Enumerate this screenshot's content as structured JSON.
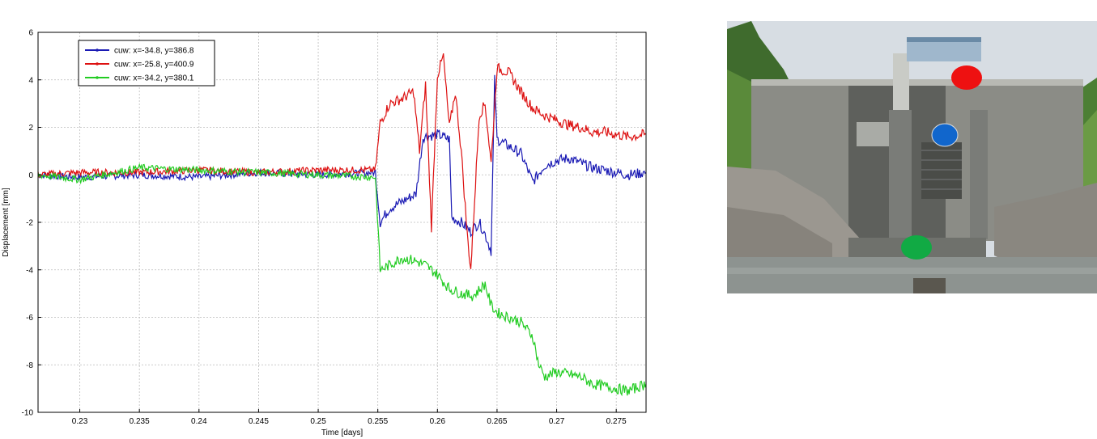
{
  "chart_data": {
    "type": "line",
    "title": "",
    "xlabel": "Time [days]",
    "ylabel": "Displacement [mm]",
    "xlim": [
      0.2265,
      0.2775
    ],
    "ylim": [
      -10,
      6
    ],
    "xticks": [
      0.23,
      0.235,
      0.24,
      0.245,
      0.25,
      0.255,
      0.26,
      0.265,
      0.27,
      0.275
    ],
    "xtick_labels": [
      "0.23",
      "0.235",
      "0.24",
      "0.245",
      "0.25",
      "0.255",
      "0.26",
      "0.265",
      "0.27",
      "0.275"
    ],
    "yticks": [
      -10,
      -8,
      -6,
      -4,
      -2,
      0,
      2,
      4,
      6
    ],
    "ytick_labels": [
      "-10",
      "-8",
      "-6",
      "-4",
      "-2",
      "0",
      "2",
      "4",
      "6"
    ],
    "grid": true,
    "legend_position": "top-left",
    "series": [
      {
        "name": "cuw: x=-34.8, y=386.8",
        "color": "#1a1ab4",
        "x": [
          0.2265,
          0.23,
          0.235,
          0.24,
          0.245,
          0.25,
          0.2548,
          0.2552,
          0.256,
          0.2575,
          0.2582,
          0.2588,
          0.26,
          0.261,
          0.2612,
          0.262,
          0.2628,
          0.2635,
          0.264,
          0.2645,
          0.2648,
          0.265,
          0.266,
          0.267,
          0.268,
          0.269,
          0.27,
          0.271,
          0.272,
          0.273,
          0.274,
          0.275,
          0.276,
          0.2775
        ],
        "y": [
          0.0,
          -0.1,
          0.0,
          -0.1,
          0.1,
          0.0,
          0.1,
          -2.0,
          -1.4,
          -1.0,
          -0.8,
          1.6,
          1.7,
          1.5,
          -1.8,
          -2.0,
          -2.4,
          -2.0,
          -2.5,
          -3.2,
          4.0,
          1.5,
          1.2,
          0.9,
          -0.3,
          0.4,
          0.6,
          0.7,
          0.5,
          0.3,
          0.2,
          0.1,
          0.0,
          0.1
        ]
      },
      {
        "name": "cuw: x=-25.8, y=400.9",
        "color": "#dd1111",
        "x": [
          0.2265,
          0.23,
          0.235,
          0.24,
          0.245,
          0.25,
          0.2548,
          0.2552,
          0.256,
          0.257,
          0.258,
          0.2585,
          0.259,
          0.2595,
          0.26,
          0.2605,
          0.261,
          0.2615,
          0.262,
          0.2625,
          0.2628,
          0.2635,
          0.264,
          0.2645,
          0.265,
          0.266,
          0.267,
          0.268,
          0.269,
          0.27,
          0.271,
          0.272,
          0.273,
          0.274,
          0.275,
          0.276,
          0.2775
        ],
        "y": [
          0.0,
          0.1,
          0.1,
          0.2,
          0.1,
          0.2,
          0.2,
          2.2,
          3.0,
          3.2,
          3.5,
          1.0,
          3.8,
          -2.2,
          4.2,
          5.0,
          2.0,
          3.5,
          1.0,
          -2.5,
          -4.0,
          2.5,
          3.0,
          0.5,
          4.5,
          4.3,
          3.5,
          2.8,
          2.5,
          2.3,
          2.1,
          2.0,
          1.8,
          1.8,
          1.7,
          1.6,
          1.7
        ]
      },
      {
        "name": "cuw: x=-34.2, y=380.1",
        "color": "#22cc22",
        "x": [
          0.2265,
          0.23,
          0.235,
          0.24,
          0.245,
          0.25,
          0.2548,
          0.2552,
          0.256,
          0.257,
          0.258,
          0.259,
          0.26,
          0.261,
          0.262,
          0.263,
          0.264,
          0.2645,
          0.265,
          0.266,
          0.267,
          0.268,
          0.2685,
          0.269,
          0.27,
          0.271,
          0.272,
          0.273,
          0.274,
          0.275,
          0.276,
          0.2775
        ],
        "y": [
          0.0,
          -0.2,
          0.3,
          0.2,
          0.1,
          0.0,
          -0.1,
          -4.0,
          -3.8,
          -3.5,
          -3.6,
          -3.8,
          -4.2,
          -4.8,
          -5.0,
          -5.1,
          -4.6,
          -5.5,
          -5.8,
          -6.0,
          -6.2,
          -6.8,
          -8.0,
          -8.5,
          -8.3,
          -8.4,
          -8.5,
          -8.8,
          -8.9,
          -9.0,
          -9.1,
          -8.8
        ]
      }
    ]
  },
  "photo": {
    "markers": [
      {
        "label": "red",
        "color": "#ee1111"
      },
      {
        "label": "blue",
        "color": "#1166cc"
      },
      {
        "label": "green",
        "color": "#11aa44"
      }
    ]
  }
}
